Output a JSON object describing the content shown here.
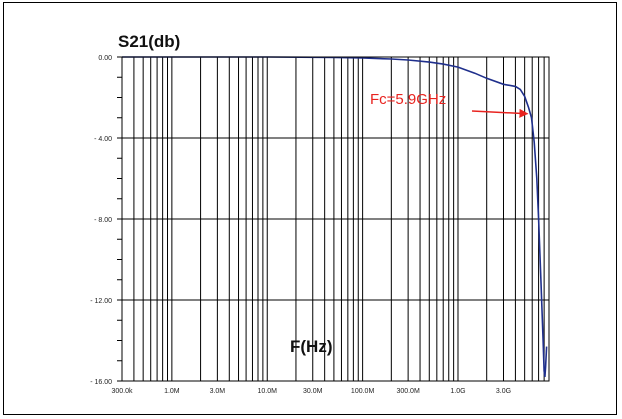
{
  "chart_data": {
    "type": "line",
    "title": "",
    "ylabel": "S21(db)",
    "xlabel": "F(Hz)",
    "xscale": "log",
    "xlim": [
      300000,
      9000000000
    ],
    "ylim": [
      -16,
      0
    ],
    "grid": true,
    "x_ticks": [
      {
        "value": 300000,
        "label": "300.0k"
      },
      {
        "value": 1000000,
        "label": "1.0M"
      },
      {
        "value": 3000000,
        "label": "3.0M"
      },
      {
        "value": 10000000,
        "label": "10.0M"
      },
      {
        "value": 30000000,
        "label": "30.0M"
      },
      {
        "value": 100000000,
        "label": "100.0M"
      },
      {
        "value": 300000000,
        "label": "300.0M"
      },
      {
        "value": 1000000000,
        "label": "1.0G"
      },
      {
        "value": 3000000000,
        "label": "3.0G"
      }
    ],
    "y_ticks": [
      {
        "value": 0,
        "label": "0.00"
      },
      {
        "value": -4,
        "label": "- 4.00"
      },
      {
        "value": -8,
        "label": "- 8.00"
      },
      {
        "value": -12,
        "label": "- 12.00"
      },
      {
        "value": -16,
        "label": "- 16.00"
      }
    ],
    "series": [
      {
        "color": "#1f2f8c",
        "x": [
          300000,
          1000000,
          10000000,
          50000000,
          100000000,
          200000000,
          300000000,
          500000000,
          700000000,
          1000000000,
          1500000000,
          2000000000,
          3000000000,
          4000000000,
          4500000000,
          5000000000,
          5500000000,
          5900000000,
          6300000000,
          6700000000,
          7000000000,
          7400000000,
          7800000000,
          8000000000,
          8150000000,
          8300000000,
          8500000000
        ],
        "y": [
          0,
          0,
          0,
          -0.02,
          -0.05,
          -0.1,
          -0.15,
          -0.25,
          -0.35,
          -0.5,
          -0.8,
          -1.05,
          -1.35,
          -1.45,
          -1.6,
          -1.95,
          -2.5,
          -3.0,
          -4.2,
          -6.0,
          -8.0,
          -11.0,
          -14.0,
          -15.5,
          -15.8,
          -15.3,
          -14.3
        ]
      }
    ],
    "annotations": [
      {
        "text": "Fc=5.9GHz",
        "x": 5900000000,
        "y": -3.0,
        "color": "#e8231f"
      }
    ]
  }
}
